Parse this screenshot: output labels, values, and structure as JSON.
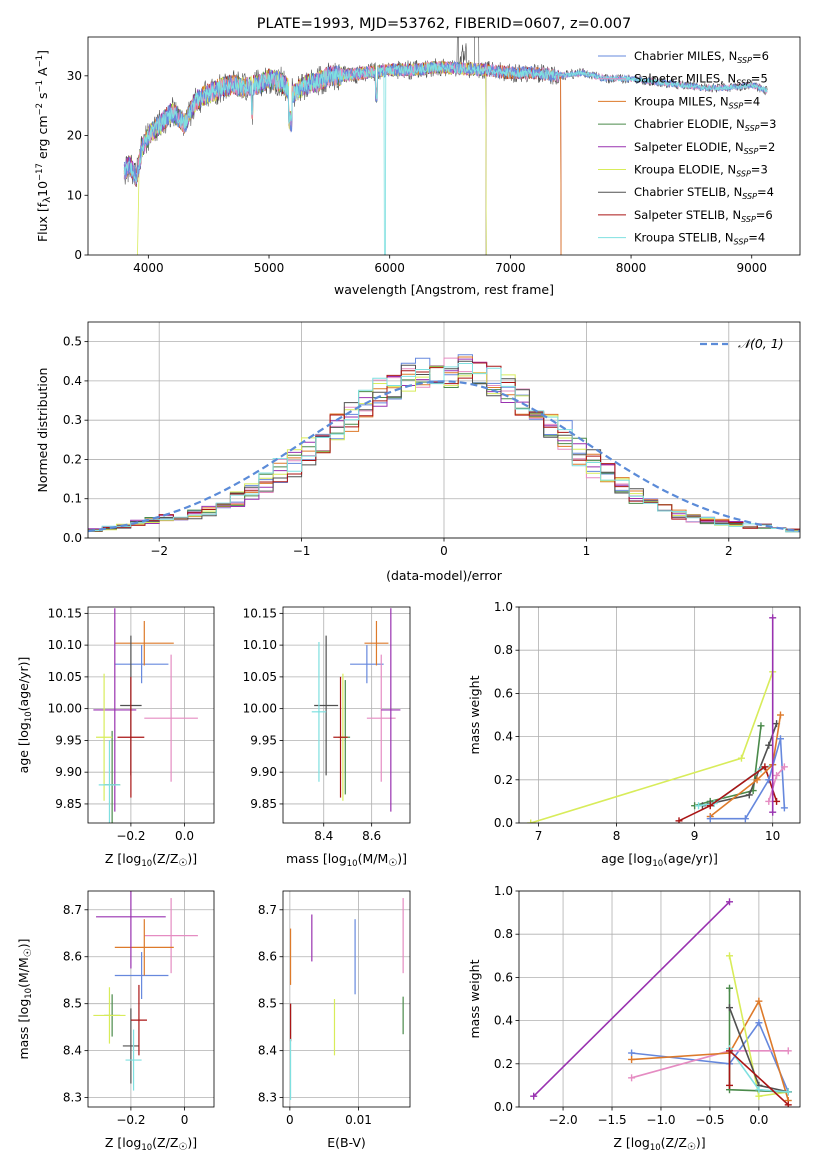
{
  "colors": {
    "Chabrier MILES": "#6688dd",
    "Salpeter MILES": "#e58cc2",
    "Kroupa MILES": "#dd7a2a",
    "Chabrier ELODIE": "#4a8a4a",
    "Salpeter ELODIE": "#9932b0",
    "Kroupa ELODIE": "#d8ec5a",
    "Chabrier STELIB": "#505050",
    "Salpeter STELIB": "#aa1515",
    "Kroupa STELIB": "#7fe0e0",
    "normal": "#5b8bd8"
  },
  "chart_data": [
    {
      "id": "spectrum",
      "type": "line",
      "title": "PLATE=1993, MJD=53762, FIBERID=0607, z=0.007",
      "xlabel": "wavelength [Angstrom, rest frame]",
      "ylabel": "Flux [f",
      "ylabel_parts": [
        "Flux [f",
        "λ",
        "10",
        "−17",
        " erg cm",
        "−2",
        " s",
        "−1",
        " A",
        "−1",
        "]"
      ],
      "xlim": [
        3500,
        9400
      ],
      "ylim": [
        0,
        36.5
      ],
      "xticks": [
        4000,
        5000,
        6000,
        7000,
        8000,
        9000
      ],
      "yticks": [
        0,
        10,
        20,
        30
      ],
      "grid": false,
      "legend_position": "top-right",
      "continuum": {
        "x": [
          3800,
          3850,
          3900,
          3950,
          4000,
          4100,
          4200,
          4300,
          4400,
          4500,
          4600,
          4700,
          4800,
          4900,
          5000,
          5100,
          5200,
          5300,
          5400,
          5500,
          5600,
          5800,
          6000,
          6200,
          6400,
          6600,
          6800,
          7000,
          7200,
          7400,
          7600,
          7800,
          8000,
          8200,
          8400,
          8600,
          8800,
          9000,
          9130
        ],
        "y": [
          14,
          15,
          13,
          18,
          20,
          22,
          24,
          22,
          26,
          27,
          28,
          28.5,
          28,
          28.5,
          29.5,
          29,
          27,
          28.5,
          29,
          30,
          30,
          30.5,
          31,
          31,
          31.5,
          31.2,
          31,
          30.5,
          30.5,
          30,
          30.5,
          29.5,
          29.5,
          29,
          28.5,
          28,
          28,
          28.5,
          27.5
        ]
      },
      "series": [
        {
          "name": "Chabrier MILES",
          "legend": "Chabrier MILES, N",
          "n_ssp": "6"
        },
        {
          "name": "Salpeter MILES",
          "legend": "Salpeter MILES, N",
          "n_ssp": "5"
        },
        {
          "name": "Kroupa MILES",
          "legend": "Kroupa MILES, N",
          "n_ssp": "4"
        },
        {
          "name": "Chabrier ELODIE",
          "legend": "Chabrier ELODIE, N",
          "n_ssp": "3"
        },
        {
          "name": "Salpeter ELODIE",
          "legend": "Salpeter ELODIE, N",
          "n_ssp": "2"
        },
        {
          "name": "Kroupa ELODIE",
          "legend": "Kroupa ELODIE, N",
          "n_ssp": "3"
        },
        {
          "name": "Chabrier STELIB",
          "legend": "Chabrier STELIB, N",
          "n_ssp": "4"
        },
        {
          "name": "Salpeter STELIB",
          "legend": "Salpeter STELIB, N",
          "n_ssp": "6"
        },
        {
          "name": "Kroupa STELIB",
          "legend": "Kroupa STELIB, N",
          "n_ssp": "4"
        }
      ],
      "legend_sub": "SSP"
    },
    {
      "id": "residuals",
      "type": "line",
      "xlabel": "(data-model)/error",
      "ylabel": "Normed distribution",
      "xlim": [
        -2.5,
        2.5
      ],
      "ylim": [
        0,
        0.55
      ],
      "xticks": [
        -2,
        -1,
        0,
        1,
        2
      ],
      "yticks": [
        0.0,
        0.1,
        0.2,
        0.3,
        0.4,
        0.5
      ],
      "grid": true,
      "legend_position": "top-right",
      "legend": "𝒩(0, 1)",
      "bin_width": 0.1,
      "bins_start": -2.5,
      "hist_base": [
        0.02,
        0.025,
        0.03,
        0.04,
        0.045,
        0.05,
        0.055,
        0.06,
        0.07,
        0.08,
        0.1,
        0.12,
        0.14,
        0.17,
        0.19,
        0.22,
        0.25,
        0.28,
        0.31,
        0.34,
        0.37,
        0.39,
        0.41,
        0.42,
        0.43,
        0.42,
        0.43,
        0.42,
        0.4,
        0.38,
        0.35,
        0.32,
        0.29,
        0.26,
        0.22,
        0.19,
        0.16,
        0.13,
        0.11,
        0.09,
        0.075,
        0.06,
        0.05,
        0.045,
        0.04,
        0.035,
        0.03,
        0.03,
        0.025,
        0.02
      ]
    },
    {
      "id": "age-vs-z",
      "type": "scatter",
      "xlabel": "Z [log",
      "xlabel_parts": [
        "Z [log",
        "10",
        "(Z/Z",
        "☉",
        ")]"
      ],
      "ylabel_parts": [
        "age  [log",
        "10",
        "(age/yr)]"
      ],
      "xlim": [
        -0.36,
        0.11
      ],
      "ylim": [
        9.82,
        10.16
      ],
      "xticks": [
        -0.2,
        0.0
      ],
      "xtick_labels": [
        "−0.2",
        "0.0"
      ],
      "yticks": [
        9.85,
        9.9,
        9.95,
        10.0,
        10.05,
        10.1,
        10.15
      ],
      "grid": true,
      "points": [
        {
          "name": "Chabrier MILES",
          "x": -0.16,
          "y": 10.07,
          "xerr": 0.1,
          "yerr": 0.03
        },
        {
          "name": "Salpeter MILES",
          "x": -0.05,
          "y": 9.985,
          "xerr": 0.1,
          "yerr": 0.1
        },
        {
          "name": "Kroupa MILES",
          "x": -0.15,
          "y": 10.103,
          "xerr": 0.11,
          "yerr": 0.035
        },
        {
          "name": "Chabrier ELODIE",
          "x": -0.27,
          "y": 9.88,
          "xerr": 0.03,
          "yerr": 0.085
        },
        {
          "name": "Salpeter ELODIE",
          "x": -0.26,
          "y": 9.998,
          "xerr": 0.08,
          "yerr": 0.16
        },
        {
          "name": "Kroupa ELODIE",
          "x": -0.3,
          "y": 9.955,
          "xerr": 0.03,
          "yerr": 0.1
        },
        {
          "name": "Chabrier STELIB",
          "x": -0.2,
          "y": 10.005,
          "xerr": 0.04,
          "yerr": 0.11
        },
        {
          "name": "Salpeter STELIB",
          "x": -0.2,
          "y": 9.955,
          "xerr": 0.05,
          "yerr": 0.095
        },
        {
          "name": "Kroupa STELIB",
          "x": -0.28,
          "y": 9.88,
          "xerr": 0.04,
          "yerr": 0.07
        }
      ]
    },
    {
      "id": "age-vs-mass",
      "type": "scatter",
      "xlabel_parts": [
        "mass [log",
        "10",
        "(M/M",
        "☉",
        ")]"
      ],
      "xlim": [
        8.23,
        8.76
      ],
      "ylim": [
        9.82,
        10.16
      ],
      "xticks": [
        8.4,
        8.6
      ],
      "yticks": [
        9.85,
        9.9,
        9.95,
        10.0,
        10.05,
        10.1,
        10.15
      ],
      "grid": true,
      "points": [
        {
          "name": "Chabrier MILES",
          "x": 8.58,
          "y": 10.07,
          "xerr": 0.07,
          "yerr": 0.03
        },
        {
          "name": "Salpeter MILES",
          "x": 8.64,
          "y": 9.985,
          "xerr": 0.06,
          "yerr": 0.1
        },
        {
          "name": "Kroupa MILES",
          "x": 8.62,
          "y": 10.103,
          "xerr": 0.05,
          "yerr": 0.035
        },
        {
          "name": "Chabrier ELODIE",
          "x": 8.49,
          "y": 9.955,
          "xerr": 0.02,
          "yerr": 0.09
        },
        {
          "name": "Salpeter ELODIE",
          "x": 8.68,
          "y": 9.998,
          "xerr": 0.04,
          "yerr": 0.16
        },
        {
          "name": "Kroupa ELODIE",
          "x": 8.48,
          "y": 9.955,
          "xerr": 0.02,
          "yerr": 0.1
        },
        {
          "name": "Chabrier STELIB",
          "x": 8.41,
          "y": 10.005,
          "xerr": 0.05,
          "yerr": 0.11
        },
        {
          "name": "Salpeter STELIB",
          "x": 8.47,
          "y": 9.955,
          "xerr": 0.03,
          "yerr": 0.095
        },
        {
          "name": "Kroupa STELIB",
          "x": 8.38,
          "y": 9.995,
          "xerr": 0.03,
          "yerr": 0.11
        }
      ]
    },
    {
      "id": "weight-vs-age",
      "type": "line",
      "xlabel_parts": [
        "age  [log",
        "10",
        "(age/yr)]"
      ],
      "ylabel": "mass weight",
      "xlim": [
        6.75,
        10.35
      ],
      "ylim": [
        0,
        1.0
      ],
      "xticks": [
        7,
        8,
        9,
        10
      ],
      "yticks": [
        0.0,
        0.2,
        0.4,
        0.6,
        0.8,
        1.0
      ],
      "grid": true,
      "series": [
        {
          "name": "Kroupa ELODIE",
          "x": [
            6.9,
            9.6,
            10.0
          ],
          "y": [
            0.0,
            0.3,
            0.7
          ]
        },
        {
          "name": "Chabrier ELODIE",
          "x": [
            9.0,
            9.2,
            9.75,
            9.85
          ],
          "y": [
            0.08,
            0.1,
            0.15,
            0.45
          ]
        },
        {
          "name": "Chabrier STELIB",
          "x": [
            9.1,
            9.2,
            9.7,
            9.95,
            10.05
          ],
          "y": [
            0.08,
            0.09,
            0.13,
            0.36,
            0.46
          ]
        },
        {
          "name": "Kroupa STELIB",
          "x": [
            9.05,
            9.25,
            9.85,
            10.0
          ],
          "y": [
            0.08,
            0.09,
            0.25,
            0.27
          ]
        },
        {
          "name": "Salpeter STELIB",
          "x": [
            8.8,
            9.2,
            9.9,
            10.05
          ],
          "y": [
            0.01,
            0.08,
            0.26,
            0.1
          ]
        },
        {
          "name": "Kroupa MILES",
          "x": [
            9.2,
            9.8,
            10.0,
            10.1
          ],
          "y": [
            0.03,
            0.2,
            0.27,
            0.5
          ]
        },
        {
          "name": "Chabrier MILES",
          "x": [
            9.2,
            9.65,
            9.95,
            10.1,
            10.15
          ],
          "y": [
            0.02,
            0.02,
            0.2,
            0.39,
            0.07
          ]
        },
        {
          "name": "Salpeter MILES",
          "x": [
            9.95,
            10.05,
            10.15
          ],
          "y": [
            0.1,
            0.22,
            0.26
          ]
        },
        {
          "name": "Salpeter ELODIE",
          "x": [
            10.0,
            10.0
          ],
          "y": [
            0.05,
            0.95
          ]
        }
      ]
    },
    {
      "id": "mass-vs-z",
      "type": "scatter",
      "xlabel_parts": [
        "Z [log",
        "10",
        "(Z/Z",
        "☉",
        ")]"
      ],
      "ylabel_parts": [
        "mass [log",
        "10",
        "(M/M",
        "☉",
        ")]"
      ],
      "xlim": [
        -0.36,
        0.11
      ],
      "ylim": [
        8.28,
        8.74
      ],
      "xticks": [
        -0.2,
        0.0
      ],
      "yticks": [
        8.3,
        8.4,
        8.5,
        8.6,
        8.7
      ],
      "grid": true,
      "points": [
        {
          "name": "Chabrier MILES",
          "x": -0.16,
          "y": 8.56,
          "xerr": 0.1,
          "yerr": 0.05
        },
        {
          "name": "Salpeter MILES",
          "x": -0.05,
          "y": 8.645,
          "xerr": 0.1,
          "yerr": 0.08
        },
        {
          "name": "Kroupa MILES",
          "x": -0.15,
          "y": 8.62,
          "xerr": 0.11,
          "yerr": 0.06
        },
        {
          "name": "Chabrier ELODIE",
          "x": -0.27,
          "y": 8.475,
          "xerr": 0.03,
          "yerr": 0.045
        },
        {
          "name": "Salpeter ELODIE",
          "x": -0.2,
          "y": 8.685,
          "xerr": 0.13,
          "yerr": 0.11
        },
        {
          "name": "Kroupa ELODIE",
          "x": -0.28,
          "y": 8.475,
          "xerr": 0.06,
          "yerr": 0.06
        },
        {
          "name": "Chabrier STELIB",
          "x": -0.2,
          "y": 8.41,
          "xerr": 0.03,
          "yerr": 0.08
        },
        {
          "name": "Salpeter STELIB",
          "x": -0.17,
          "y": 8.465,
          "xerr": 0.03,
          "yerr": 0.075
        },
        {
          "name": "Kroupa STELIB",
          "x": -0.19,
          "y": 8.38,
          "xerr": 0.03,
          "yerr": 0.065
        }
      ]
    },
    {
      "id": "mass-vs-ebv",
      "type": "scatter",
      "xlabel": "E(B-V)",
      "xlim": [
        -0.001,
        0.0175
      ],
      "ylim": [
        8.28,
        8.74
      ],
      "xticks": [
        0.0,
        0.01
      ],
      "yticks": [
        8.3,
        8.4,
        8.5,
        8.6,
        8.7
      ],
      "grid": true,
      "points": [
        {
          "name": "Chabrier MILES",
          "x": 0.0095,
          "y": 8.6,
          "xerr": 0,
          "yerr": 0.08
        },
        {
          "name": "Salpeter MILES",
          "x": 0.0165,
          "y": 8.645,
          "xerr": 0,
          "yerr": 0.08
        },
        {
          "name": "Kroupa MILES",
          "x": 0.0001,
          "y": 8.6,
          "xerr": 0,
          "yerr": 0.06
        },
        {
          "name": "Chabrier ELODIE",
          "x": 0.0165,
          "y": 8.475,
          "xerr": 0,
          "yerr": 0.04
        },
        {
          "name": "Salpeter ELODIE",
          "x": 0.0032,
          "y": 8.64,
          "xerr": 0,
          "yerr": 0.05
        },
        {
          "name": "Kroupa ELODIE",
          "x": 0.0065,
          "y": 8.45,
          "xerr": 0,
          "yerr": 0.06
        },
        {
          "name": "Chabrier STELIB",
          "x": 0.0001,
          "y": 8.46,
          "xerr": 0,
          "yerr": 0.04
        },
        {
          "name": "Salpeter STELIB",
          "x": 0.0001,
          "y": 8.46,
          "xerr": 0,
          "yerr": 0.04
        },
        {
          "name": "Kroupa STELIB",
          "x": 0.0001,
          "y": 8.36,
          "xerr": 0,
          "yerr": 0.065
        }
      ]
    },
    {
      "id": "weight-vs-z",
      "type": "line",
      "xlabel_parts": [
        "Z [log",
        "10",
        "(Z/Z",
        "☉",
        ")]"
      ],
      "ylabel": "mass weight",
      "xlim": [
        -2.45,
        0.42
      ],
      "ylim": [
        0,
        1.0
      ],
      "xticks": [
        -2.0,
        -1.5,
        -1.0,
        -0.5,
        0.0
      ],
      "xtick_labels": [
        "−2.0",
        "−1.5",
        "−1.0",
        "−0.5",
        "0.0"
      ],
      "yticks": [
        0.0,
        0.2,
        0.4,
        0.6,
        0.8,
        1.0
      ],
      "grid": true,
      "series": [
        {
          "name": "Salpeter ELODIE",
          "x": [
            -2.3,
            -0.3
          ],
          "y": [
            0.05,
            0.95
          ]
        },
        {
          "name": "Chabrier MILES",
          "x": [
            -1.3,
            -0.3,
            0.0,
            0.3
          ],
          "y": [
            0.25,
            0.2,
            0.39,
            0.07
          ]
        },
        {
          "name": "Salpeter MILES",
          "x": [
            -1.3,
            -0.3,
            0.3
          ],
          "y": [
            0.135,
            0.26,
            0.26
          ]
        },
        {
          "name": "Kroupa MILES",
          "x": [
            -1.3,
            -0.3,
            0.0,
            0.3
          ],
          "y": [
            0.22,
            0.25,
            0.49,
            0.03
          ]
        },
        {
          "name": "Kroupa ELODIE",
          "x": [
            -0.3,
            0.0,
            0.3
          ],
          "y": [
            0.7,
            0.05,
            0.07
          ]
        },
        {
          "name": "Chabrier ELODIE",
          "x": [
            -0.3,
            -0.3,
            0.3
          ],
          "y": [
            0.55,
            0.08,
            0.07
          ]
        },
        {
          "name": "Chabrier STELIB",
          "x": [
            -0.3,
            0.0,
            0.3
          ],
          "y": [
            0.46,
            0.1,
            0.07
          ]
        },
        {
          "name": "Kroupa STELIB",
          "x": [
            -0.3,
            0.0,
            0.3
          ],
          "y": [
            0.27,
            0.08,
            0.07
          ]
        },
        {
          "name": "Salpeter STELIB",
          "x": [
            -0.3,
            -0.3,
            0.3
          ],
          "y": [
            0.1,
            0.26,
            0.01
          ]
        }
      ]
    }
  ]
}
